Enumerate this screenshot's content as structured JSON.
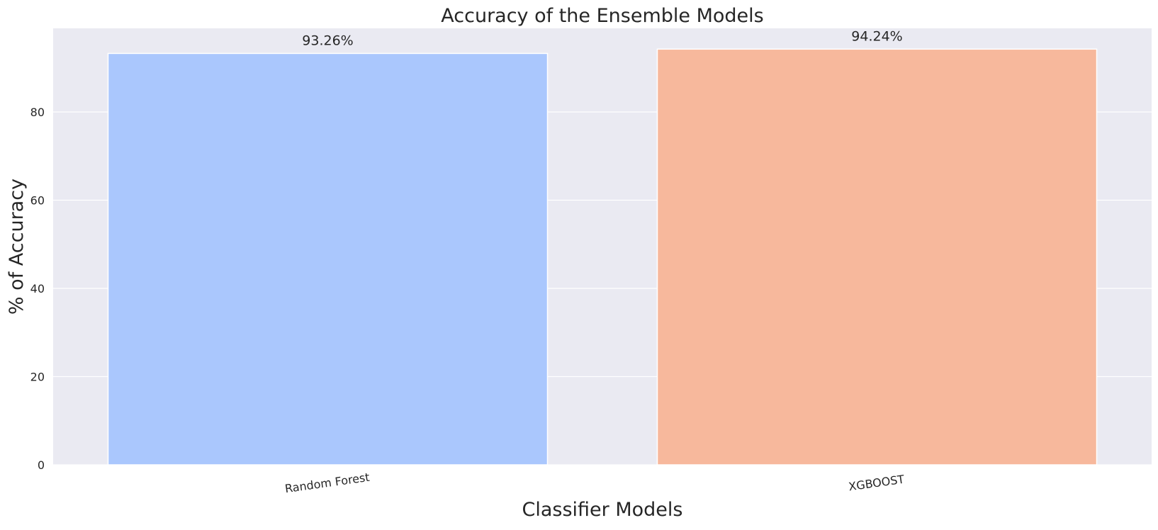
{
  "chart_data": {
    "type": "bar",
    "title": "Accuracy of the Ensemble Models",
    "xlabel": "Classifier Models",
    "ylabel": "% of Accuracy",
    "categories": [
      "Random Forest",
      "XGBOOST"
    ],
    "values": [
      93.26,
      94.24
    ],
    "data_labels": [
      "93.26%",
      "94.24%"
    ],
    "colors": [
      "#aac7fd",
      "#f7b89c"
    ],
    "ylim": [
      0,
      98.95
    ],
    "yticks": [
      0,
      20,
      40,
      60,
      80
    ],
    "ytick_labels": [
      "0",
      "20",
      "40",
      "60",
      "80"
    ],
    "grid": true,
    "background_color": "#eaeaf2",
    "grid_color": "#ffffff",
    "x_tick_rotation_deg": 8
  }
}
